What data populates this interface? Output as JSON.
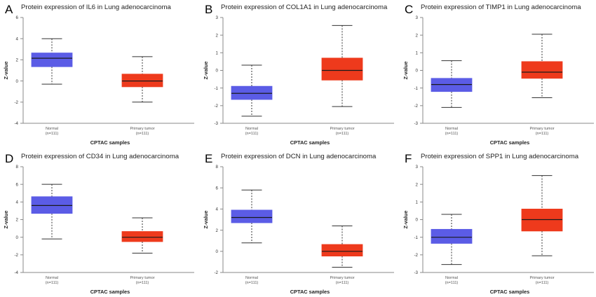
{
  "colors": {
    "normal": "#5b5ce6",
    "tumor": "#ee3a1c",
    "median": "#1a1a1a",
    "whisker": "#333333",
    "axis": "#888888"
  },
  "chart_data": [
    {
      "letter": "A",
      "type": "box",
      "title": "Protein expression of IL6 in Lung adenocarcinoma",
      "xlabel": "CPTAC samples",
      "ylabel": "Z-value",
      "ylim": [
        -4,
        6
      ],
      "yticks": [
        -4,
        -2,
        0,
        2,
        4,
        6
      ],
      "categories": [
        {
          "name": "Normal",
          "n": "(n=111)",
          "stats": {
            "min": -0.3,
            "q1": 1.35,
            "median": 2.15,
            "q3": 2.65,
            "max": 4.0
          }
        },
        {
          "name": "Primary tumor",
          "n": "(n=111)",
          "stats": {
            "min": -2.0,
            "q1": -0.55,
            "median": 0.0,
            "q3": 0.65,
            "max": 2.3
          }
        }
      ]
    },
    {
      "letter": "B",
      "type": "box",
      "title": "Protein expression of COL1A1 in Lung adenocarcinoma",
      "xlabel": "CPTAC samples",
      "ylabel": "Z-value",
      "ylim": [
        -3,
        3
      ],
      "yticks": [
        -3,
        -2,
        -1,
        0,
        1,
        2,
        3
      ],
      "categories": [
        {
          "name": "Normal",
          "n": "(n=111)",
          "stats": {
            "min": -2.6,
            "q1": -1.65,
            "median": -1.3,
            "q3": -0.9,
            "max": 0.3
          }
        },
        {
          "name": "Primary tumor",
          "n": "(n=111)",
          "stats": {
            "min": -2.05,
            "q1": -0.55,
            "median": 0.0,
            "q3": 0.7,
            "max": 2.55
          }
        }
      ]
    },
    {
      "letter": "C",
      "type": "box",
      "title": "Protein expression of TIMP1 in Lung adenocarcinoma",
      "xlabel": "CPTAC samples",
      "ylabel": "Z-value",
      "ylim": [
        -3,
        3
      ],
      "yticks": [
        -3,
        -2,
        -1,
        0,
        1,
        2,
        3
      ],
      "categories": [
        {
          "name": "Normal",
          "n": "(n=111)",
          "stats": {
            "min": -2.1,
            "q1": -1.2,
            "median": -0.8,
            "q3": -0.45,
            "max": 0.55
          }
        },
        {
          "name": "Primary tumor",
          "n": "(n=111)",
          "stats": {
            "min": -1.55,
            "q1": -0.45,
            "median": -0.1,
            "q3": 0.5,
            "max": 2.05
          }
        }
      ]
    },
    {
      "letter": "D",
      "type": "box",
      "title": "Protein expression of CD34 in Lung adenocarcinoma",
      "xlabel": "CPTAC samples",
      "ylabel": "Z-value",
      "ylim": [
        -4,
        8
      ],
      "yticks": [
        -4,
        -2,
        0,
        2,
        4,
        6,
        8
      ],
      "categories": [
        {
          "name": "Normal",
          "n": "(n=111)",
          "stats": {
            "min": -0.2,
            "q1": 2.7,
            "median": 3.6,
            "q3": 4.6,
            "max": 6.0
          }
        },
        {
          "name": "Primary tumor",
          "n": "(n=111)",
          "stats": {
            "min": -1.8,
            "q1": -0.5,
            "median": 0.0,
            "q3": 0.65,
            "max": 2.2
          }
        }
      ]
    },
    {
      "letter": "E",
      "type": "box",
      "title": "Protein expression of DCN in Lung adenocarcinoma",
      "xlabel": "CPTAC samples",
      "ylabel": "Z-value",
      "ylim": [
        -2,
        8
      ],
      "yticks": [
        -2,
        0,
        2,
        4,
        6,
        8
      ],
      "categories": [
        {
          "name": "Normal",
          "n": "(n=111)",
          "stats": {
            "min": 0.8,
            "q1": 2.7,
            "median": 3.2,
            "q3": 3.9,
            "max": 5.8
          }
        },
        {
          "name": "Primary tumor",
          "n": "(n=111)",
          "stats": {
            "min": -1.5,
            "q1": -0.45,
            "median": 0.0,
            "q3": 0.65,
            "max": 2.4
          }
        }
      ]
    },
    {
      "letter": "F",
      "type": "box",
      "title": "Protein expression of SPP1 in Lung adenocarcinoma",
      "xlabel": "CPTAC samples",
      "ylabel": "Z-value",
      "ylim": [
        -3,
        3
      ],
      "yticks": [
        -3,
        -2,
        -1,
        0,
        1,
        2,
        3
      ],
      "categories": [
        {
          "name": "Normal",
          "n": "(n=111)",
          "stats": {
            "min": -2.55,
            "q1": -1.35,
            "median": -1.0,
            "q3": -0.55,
            "max": 0.3
          }
        },
        {
          "name": "Primary tumor",
          "n": "(n=111)",
          "stats": {
            "min": -2.05,
            "q1": -0.65,
            "median": 0.0,
            "q3": 0.6,
            "max": 2.5
          }
        }
      ]
    }
  ]
}
